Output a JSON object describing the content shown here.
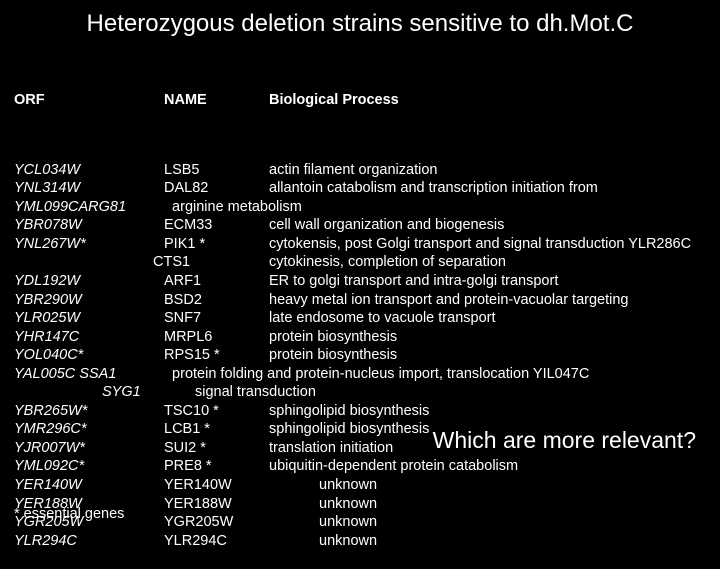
{
  "title": "Heterozygous deletion strains sensitive to dh.Mot.C",
  "headers": {
    "orf": "ORF",
    "name": "NAME",
    "bio": "Biological Process"
  },
  "rows": [
    {
      "orf": "YCL034W",
      "name": "LSB5",
      "bio": "actin filament organization"
    },
    {
      "orf": "YNL314W",
      "name": "DAL82",
      "bio": "allantoin catabolism and transcription initiation from"
    },
    {
      "orf": "YML099CARG81",
      "name": "",
      "bio": "arginine metabolism",
      "special": "merge-indent"
    },
    {
      "orf": "YBR078W",
      "name": "ECM33",
      "bio": "cell wall organization and biogenesis"
    },
    {
      "orf": "YNL267W*",
      "name": "PIK1 *",
      "bio": "cytokensis, post Golgi transport and signal transduction YLR286C"
    },
    {
      "orf": "",
      "name": "CTS1",
      "bio": "cytokinesis, completion of separation",
      "special": "noorfshift"
    },
    {
      "orf": "YDL192W",
      "name": "ARF1",
      "bio": "ER to golgi transport and intra-golgi transport"
    },
    {
      "orf": "YBR290W",
      "name": "BSD2",
      "bio": "heavy metal ion transport and protein-vacuolar targeting"
    },
    {
      "orf": "YLR025W",
      "name": "SNF7",
      "bio": "late endosome to vacuole transport"
    },
    {
      "orf": "YHR147C",
      "name": "MRPL6",
      "bio": "protein biosynthesis"
    },
    {
      "orf": "YOL040C*",
      "name": "RPS15 *",
      "bio": "protein biosynthesis"
    },
    {
      "orf": "YAL005C SSA1",
      "name": "",
      "bio": "protein folding and protein-nucleus import, translocation YIL047C",
      "special": "merge-indent"
    },
    {
      "orf": "",
      "name": "SYG1",
      "bio": "signal transduction",
      "special": "syg"
    },
    {
      "orf": "YBR265W*",
      "name": "TSC10 *",
      "bio": "sphingolipid biosynthesis"
    },
    {
      "orf": "YMR296C*",
      "name": "LCB1 *",
      "bio": "sphingolipid biosynthesis"
    },
    {
      "orf": "YJR007W*",
      "name": "SUI2 *",
      "bio": "translation initiation"
    },
    {
      "orf": "YML092C*",
      "name": "PRE8 *",
      "bio": "ubiquitin-dependent protein catabolism"
    },
    {
      "orf": "YER140W",
      "name": "YER140W",
      "bio": "unknown",
      "special": "unk"
    },
    {
      "orf": "YER188W",
      "name": "YER188W",
      "bio": "unknown",
      "special": "unk"
    },
    {
      "orf": "YGR205W",
      "name": "YGR205W",
      "bio": "unknown",
      "special": "unk"
    },
    {
      "orf": "YLR294C",
      "name": "YLR294C",
      "bio": "unknown",
      "special": "unk"
    }
  ],
  "callout": "Which are more relevant?",
  "footnote": "* essential genes"
}
